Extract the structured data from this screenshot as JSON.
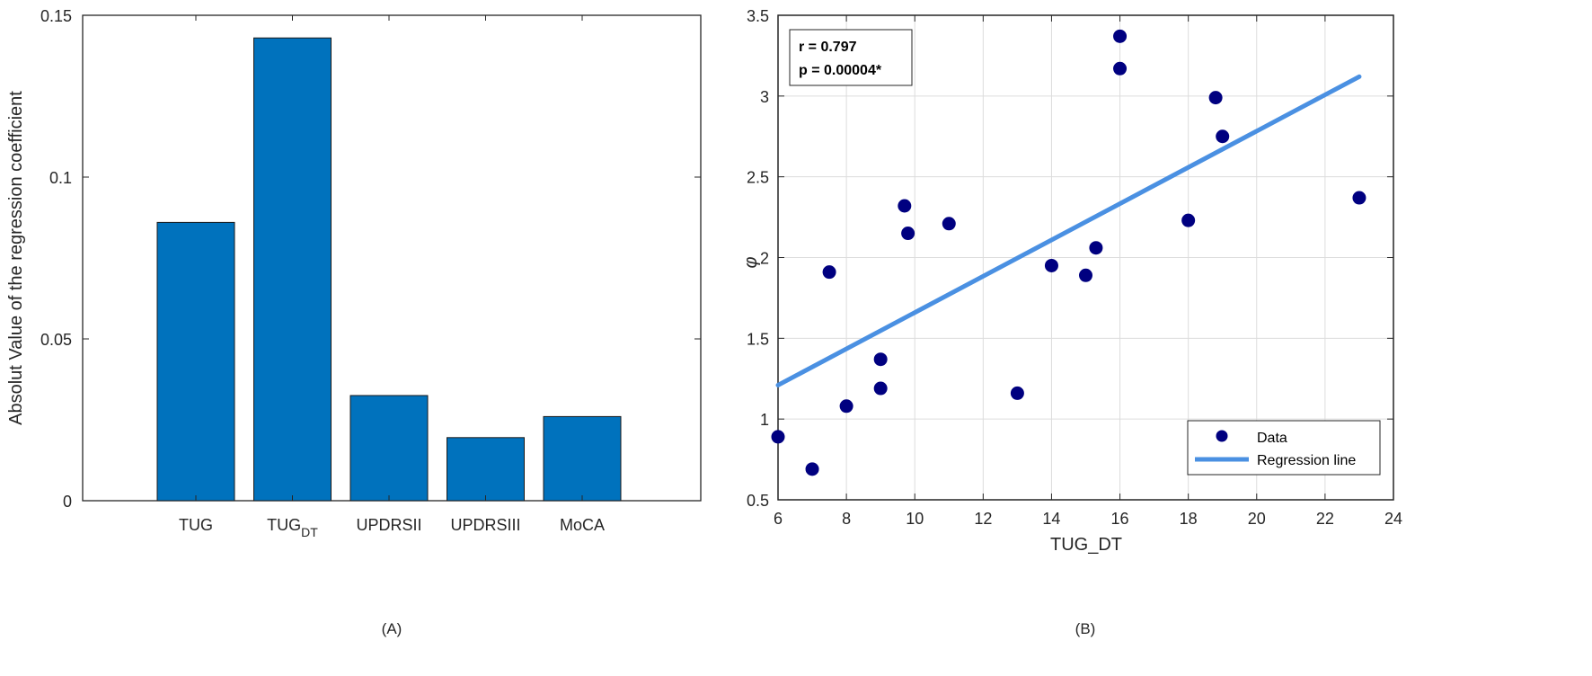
{
  "chart_data": [
    {
      "type": "bar",
      "panel_label": "(A)",
      "title": "",
      "xlabel": "",
      "ylabel": "Absolut Value of the regression coefficient",
      "categories": [
        {
          "main": "TUG",
          "sub": ""
        },
        {
          "main": "TUG",
          "sub": "DT"
        },
        {
          "main": "UPDRSII",
          "sub": ""
        },
        {
          "main": "UPDRSIII",
          "sub": ""
        },
        {
          "main": "MoCA",
          "sub": ""
        }
      ],
      "values": [
        0.086,
        0.143,
        0.0325,
        0.0195,
        0.026
      ],
      "ylim": [
        0,
        0.15
      ],
      "yticks": [
        0,
        0.05,
        0.1,
        0.15
      ],
      "ytick_labels": [
        "0",
        "0.05",
        "0.1",
        "0.15"
      ],
      "grid": false,
      "bar_color": "#0072BD"
    },
    {
      "type": "scatter",
      "panel_label": "(B)",
      "title": "",
      "xlabel": "TUG_DT",
      "ylabel": "φ",
      "xlim": [
        6,
        24
      ],
      "ylim": [
        0.5,
        3.5
      ],
      "xticks": [
        6,
        8,
        10,
        12,
        14,
        16,
        18,
        20,
        22,
        24
      ],
      "xtick_labels": [
        "6",
        "8",
        "10",
        "12",
        "14",
        "16",
        "18",
        "20",
        "22",
        "24"
      ],
      "yticks": [
        0.5,
        1,
        1.5,
        2,
        2.5,
        3,
        3.5
      ],
      "ytick_labels": [
        "0.5",
        "1",
        "1.5",
        "2",
        "2.5",
        "3",
        "3.5"
      ],
      "grid": true,
      "points": {
        "x": [
          6,
          7,
          7.5,
          8,
          9,
          9,
          9.7,
          9.8,
          11,
          13,
          14,
          15,
          15.3,
          16,
          16,
          18,
          18.8,
          19,
          23
        ],
        "y": [
          0.89,
          0.69,
          1.91,
          1.08,
          1.37,
          1.19,
          2.32,
          2.15,
          2.21,
          1.16,
          1.95,
          1.89,
          2.06,
          3.17,
          3.37,
          2.23,
          2.99,
          2.75,
          2.37
        ]
      },
      "regression_line": {
        "x": [
          6,
          23
        ],
        "y": [
          1.21,
          3.12
        ]
      },
      "annotation": [
        "r = 0.797",
        "p = 0.00004*"
      ],
      "legend": {
        "position": "bottom-right",
        "entries": [
          "Data",
          "Regression line"
        ]
      },
      "point_color": "#000080",
      "line_color": "#4A90E2"
    }
  ]
}
